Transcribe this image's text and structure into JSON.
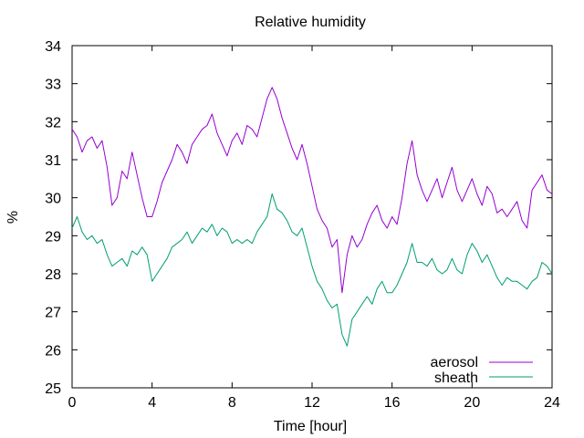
{
  "chart_data": {
    "type": "line",
    "title": "Relative humidity",
    "xlabel": "Time [hour]",
    "ylabel": "%",
    "xlim": [
      0,
      24
    ],
    "ylim": [
      25,
      34
    ],
    "xticks": [
      0,
      4,
      8,
      12,
      16,
      20,
      24
    ],
    "yticks": [
      25,
      26,
      27,
      28,
      29,
      30,
      31,
      32,
      33,
      34
    ],
    "xtick_labels": [
      "0",
      "4",
      "8",
      "12",
      "16",
      "20",
      "24"
    ],
    "ytick_labels": [
      "25",
      "26",
      "27",
      "28",
      "29",
      "30",
      "31",
      "32",
      "33",
      "34"
    ],
    "grid": false,
    "legend_position": "bottom-right",
    "series": [
      {
        "name": "aerosol",
        "color": "#9400d3",
        "x": [
          0.0,
          0.25,
          0.5,
          0.75,
          1.0,
          1.25,
          1.5,
          1.75,
          2.0,
          2.25,
          2.5,
          2.75,
          3.0,
          3.25,
          3.5,
          3.75,
          4.0,
          4.25,
          4.5,
          4.75,
          5.0,
          5.25,
          5.5,
          5.75,
          6.0,
          6.25,
          6.5,
          6.75,
          7.0,
          7.25,
          7.5,
          7.75,
          8.0,
          8.25,
          8.5,
          8.75,
          9.0,
          9.25,
          9.5,
          9.75,
          10.0,
          10.25,
          10.5,
          10.75,
          11.0,
          11.25,
          11.5,
          11.75,
          12.0,
          12.25,
          12.5,
          12.75,
          13.0,
          13.25,
          13.5,
          13.75,
          14.0,
          14.25,
          14.5,
          14.75,
          15.0,
          15.25,
          15.5,
          15.75,
          16.0,
          16.25,
          16.5,
          16.75,
          17.0,
          17.25,
          17.5,
          17.75,
          18.0,
          18.25,
          18.5,
          18.75,
          19.0,
          19.25,
          19.5,
          19.75,
          20.0,
          20.25,
          20.5,
          20.75,
          21.0,
          21.25,
          21.5,
          21.75,
          22.0,
          22.25,
          22.5,
          22.75,
          23.0,
          23.25,
          23.5,
          23.75,
          24.0
        ],
        "y": [
          31.8,
          31.6,
          31.2,
          31.5,
          31.6,
          31.3,
          31.5,
          30.8,
          29.8,
          30.0,
          30.7,
          30.5,
          31.2,
          30.6,
          30.0,
          29.5,
          29.5,
          29.9,
          30.4,
          30.7,
          31.0,
          31.4,
          31.2,
          30.9,
          31.4,
          31.6,
          31.8,
          31.9,
          32.2,
          31.7,
          31.4,
          31.1,
          31.5,
          31.7,
          31.4,
          31.9,
          31.8,
          31.6,
          32.1,
          32.6,
          32.9,
          32.6,
          32.1,
          31.7,
          31.3,
          31.0,
          31.4,
          30.9,
          30.3,
          29.7,
          29.4,
          29.2,
          28.7,
          28.9,
          27.5,
          28.5,
          29.0,
          28.7,
          28.9,
          29.3,
          29.6,
          29.8,
          29.4,
          29.2,
          29.5,
          29.3,
          30.0,
          30.9,
          31.5,
          30.6,
          30.2,
          29.9,
          30.2,
          30.5,
          30.0,
          30.4,
          30.8,
          30.2,
          29.9,
          30.2,
          30.5,
          30.1,
          29.8,
          30.3,
          30.1,
          29.6,
          29.7,
          29.5,
          29.7,
          29.9,
          29.4,
          29.2,
          30.2,
          30.4,
          30.6,
          30.2,
          30.1
        ]
      },
      {
        "name": "sheath",
        "color": "#009e73",
        "x": [
          0.0,
          0.25,
          0.5,
          0.75,
          1.0,
          1.25,
          1.5,
          1.75,
          2.0,
          2.25,
          2.5,
          2.75,
          3.0,
          3.25,
          3.5,
          3.75,
          4.0,
          4.25,
          4.5,
          4.75,
          5.0,
          5.25,
          5.5,
          5.75,
          6.0,
          6.25,
          6.5,
          6.75,
          7.0,
          7.25,
          7.5,
          7.75,
          8.0,
          8.25,
          8.5,
          8.75,
          9.0,
          9.25,
          9.5,
          9.75,
          10.0,
          10.25,
          10.5,
          10.75,
          11.0,
          11.25,
          11.5,
          11.75,
          12.0,
          12.25,
          12.5,
          12.75,
          13.0,
          13.25,
          13.5,
          13.75,
          14.0,
          14.25,
          14.5,
          14.75,
          15.0,
          15.25,
          15.5,
          15.75,
          16.0,
          16.25,
          16.5,
          16.75,
          17.0,
          17.25,
          17.5,
          17.75,
          18.0,
          18.25,
          18.5,
          18.75,
          19.0,
          19.25,
          19.5,
          19.75,
          20.0,
          20.25,
          20.5,
          20.75,
          21.0,
          21.25,
          21.5,
          21.75,
          22.0,
          22.25,
          22.5,
          22.75,
          23.0,
          23.25,
          23.5,
          23.75,
          24.0
        ],
        "y": [
          29.2,
          29.5,
          29.1,
          28.9,
          29.0,
          28.8,
          28.9,
          28.5,
          28.2,
          28.3,
          28.4,
          28.2,
          28.6,
          28.5,
          28.7,
          28.5,
          27.8,
          28.0,
          28.2,
          28.4,
          28.7,
          28.8,
          28.9,
          29.1,
          28.8,
          29.0,
          29.2,
          29.1,
          29.3,
          29.0,
          29.2,
          29.1,
          28.8,
          28.9,
          28.8,
          28.9,
          28.8,
          29.1,
          29.3,
          29.5,
          30.1,
          29.7,
          29.6,
          29.4,
          29.1,
          29.0,
          29.2,
          28.7,
          28.2,
          27.8,
          27.6,
          27.3,
          27.1,
          27.2,
          26.4,
          26.1,
          26.8,
          27.0,
          27.2,
          27.4,
          27.2,
          27.6,
          27.8,
          27.5,
          27.5,
          27.7,
          28.0,
          28.3,
          28.8,
          28.3,
          28.3,
          28.2,
          28.4,
          28.1,
          28.0,
          28.1,
          28.4,
          28.1,
          28.0,
          28.5,
          28.8,
          28.6,
          28.3,
          28.5,
          28.2,
          27.9,
          27.7,
          27.9,
          27.8,
          27.8,
          27.7,
          27.6,
          27.8,
          27.9,
          28.3,
          28.2,
          28.0
        ]
      }
    ]
  }
}
